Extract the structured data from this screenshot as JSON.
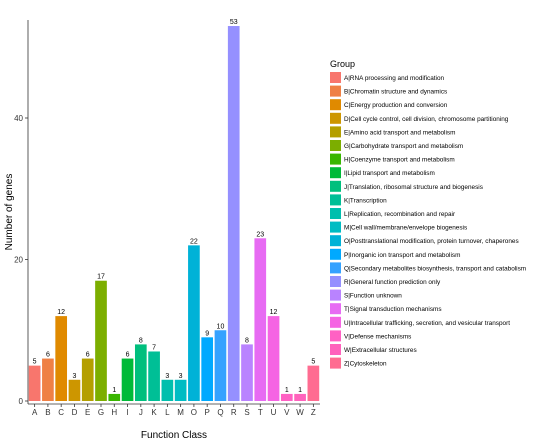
{
  "chart_data": {
    "type": "bar",
    "xlabel": "Function Class",
    "ylabel": "Number of genes",
    "ylim": [
      0,
      56
    ],
    "yticks": [
      0,
      20,
      40
    ],
    "grid": false,
    "legend_title": "Group",
    "legend_placement": "right",
    "categories": [
      "A",
      "B",
      "C",
      "D",
      "E",
      "G",
      "H",
      "I",
      "J",
      "K",
      "L",
      "M",
      "O",
      "P",
      "Q",
      "R",
      "S",
      "T",
      "U",
      "V",
      "W",
      "Z"
    ],
    "values": [
      5,
      6,
      12,
      3,
      6,
      17,
      1,
      6,
      8,
      7,
      3,
      3,
      22,
      9,
      10,
      53,
      8,
      23,
      12,
      1,
      1,
      5
    ],
    "colors": [
      "#F8766D",
      "#EF8045",
      "#E08A00",
      "#CD9600",
      "#B49F00",
      "#7CAE00",
      "#39B600",
      "#00BA38",
      "#00BF7D",
      "#00BF96",
      "#00BFAD",
      "#00BCC3",
      "#00B2D7",
      "#00A9FF",
      "#35A2FF",
      "#9590FF",
      "#B983FF",
      "#E76BF3",
      "#F564E3",
      "#FF61C3",
      "#FF62BC",
      "#FF6C91"
    ],
    "legend": [
      {
        "code": "A",
        "label": "A|RNA processing and modification",
        "color": "#F8766D"
      },
      {
        "code": "B",
        "label": "B|Chromatin structure and dynamics",
        "color": "#EF8045"
      },
      {
        "code": "C",
        "label": "C|Energy production and conversion",
        "color": "#E08A00"
      },
      {
        "code": "D",
        "label": "D|Cell cycle control, cell division, chromosome partitioning",
        "color": "#CD9600"
      },
      {
        "code": "E",
        "label": "E|Amino acid transport and metabolism",
        "color": "#B49F00"
      },
      {
        "code": "G",
        "label": "G|Carbohydrate transport and metabolism",
        "color": "#7CAE00"
      },
      {
        "code": "H",
        "label": "H|Coenzyme transport and metabolism",
        "color": "#39B600"
      },
      {
        "code": "I",
        "label": "I|Lipid transport and metabolism",
        "color": "#00BA38"
      },
      {
        "code": "J",
        "label": "J|Translation, ribosomal structure and biogenesis",
        "color": "#00BF7D"
      },
      {
        "code": "K",
        "label": "K|Transcription",
        "color": "#00BF96"
      },
      {
        "code": "L",
        "label": "L|Replication, recombination and repair",
        "color": "#00BFAD"
      },
      {
        "code": "M",
        "label": "M|Cell wall/membrane/envelope biogenesis",
        "color": "#00BCC3"
      },
      {
        "code": "O",
        "label": "O|Posttranslational modification, protein turnover, chaperones",
        "color": "#00B2D7"
      },
      {
        "code": "P",
        "label": "P|Inorganic ion transport and metabolism",
        "color": "#00A9FF"
      },
      {
        "code": "Q",
        "label": "Q|Secondary metabolites biosynthesis, transport and catabolism",
        "color": "#35A2FF"
      },
      {
        "code": "R",
        "label": "R|General function prediction only",
        "color": "#9590FF"
      },
      {
        "code": "S",
        "label": "S|Function unknown",
        "color": "#B983FF"
      },
      {
        "code": "T",
        "label": "T|Signal transduction mechanisms",
        "color": "#E76BF3"
      },
      {
        "code": "U",
        "label": "U|Intracellular trafficking, secretion, and vesicular transport",
        "color": "#F564E3"
      },
      {
        "code": "V",
        "label": "V|Defense mechanisms",
        "color": "#FF61C3"
      },
      {
        "code": "W",
        "label": "W|Extracellular structures",
        "color": "#FF62BC"
      },
      {
        "code": "Z",
        "label": "Z|Cytoskeleton",
        "color": "#FF6C91"
      }
    ]
  }
}
